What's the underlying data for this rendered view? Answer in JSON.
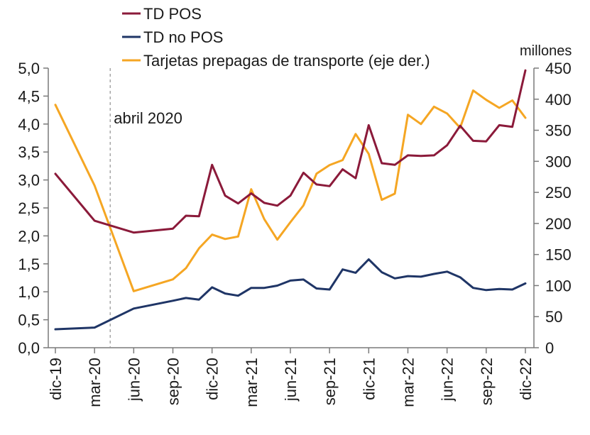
{
  "chart_data": {
    "type": "line",
    "title": "",
    "xlabel": "",
    "ylabel": "",
    "y2label": "millones",
    "ylim": [
      0,
      5
    ],
    "y2lim": [
      0,
      450
    ],
    "yticks": [
      "0,0",
      "0,5",
      "1,0",
      "1,5",
      "2,0",
      "2,5",
      "3,0",
      "3,5",
      "4,0",
      "4,5",
      "5,0"
    ],
    "y2ticks": [
      "0",
      "50",
      "100",
      "150",
      "200",
      "250",
      "300",
      "350",
      "400",
      "450"
    ],
    "x_tick_labels": [
      {
        "month": 0,
        "label": "dic-19"
      },
      {
        "month": 3,
        "label": "mar-20"
      },
      {
        "month": 6,
        "label": "jun-20"
      },
      {
        "month": 9,
        "label": "sep-20"
      },
      {
        "month": 12,
        "label": "dic-20"
      },
      {
        "month": 15,
        "label": "mar-21"
      },
      {
        "month": 18,
        "label": "jun-21"
      },
      {
        "month": 21,
        "label": "sep-21"
      },
      {
        "month": 24,
        "label": "dic-21"
      },
      {
        "month": 27,
        "label": "mar-22"
      },
      {
        "month": 30,
        "label": "jun-22"
      },
      {
        "month": 33,
        "label": "sep-22"
      },
      {
        "month": 36,
        "label": "dic-22"
      }
    ],
    "annotation": {
      "month": 4.2,
      "label": "abril 2020"
    },
    "series": [
      {
        "name": "TD POS",
        "color": "#8b1a3a",
        "axis": "left",
        "points": [
          [
            0,
            3.11
          ],
          [
            3,
            2.27
          ],
          [
            6,
            2.06
          ],
          [
            9,
            2.13
          ],
          [
            10,
            2.36
          ],
          [
            11,
            2.35
          ],
          [
            12,
            3.27
          ],
          [
            13,
            2.72
          ],
          [
            14,
            2.58
          ],
          [
            15,
            2.76
          ],
          [
            16,
            2.59
          ],
          [
            17,
            2.54
          ],
          [
            18,
            2.72
          ],
          [
            19,
            3.13
          ],
          [
            20,
            2.92
          ],
          [
            21,
            2.89
          ],
          [
            22,
            3.19
          ],
          [
            23,
            3.03
          ],
          [
            24,
            3.98
          ],
          [
            25,
            3.3
          ],
          [
            26,
            3.27
          ],
          [
            27,
            3.44
          ],
          [
            28,
            3.43
          ],
          [
            29,
            3.44
          ],
          [
            30,
            3.62
          ],
          [
            31,
            3.97
          ],
          [
            32,
            3.7
          ],
          [
            33,
            3.69
          ],
          [
            34,
            3.98
          ],
          [
            35,
            3.95
          ],
          [
            36,
            4.96
          ]
        ]
      },
      {
        "name": "TD no POS",
        "color": "#1f3566",
        "axis": "left",
        "points": [
          [
            0,
            0.33
          ],
          [
            3,
            0.36
          ],
          [
            6,
            0.7
          ],
          [
            9,
            0.84
          ],
          [
            10,
            0.89
          ],
          [
            11,
            0.86
          ],
          [
            12,
            1.08
          ],
          [
            13,
            0.97
          ],
          [
            14,
            0.93
          ],
          [
            15,
            1.07
          ],
          [
            16,
            1.07
          ],
          [
            17,
            1.11
          ],
          [
            18,
            1.2
          ],
          [
            19,
            1.22
          ],
          [
            20,
            1.06
          ],
          [
            21,
            1.04
          ],
          [
            22,
            1.4
          ],
          [
            23,
            1.34
          ],
          [
            24,
            1.58
          ],
          [
            25,
            1.35
          ],
          [
            26,
            1.24
          ],
          [
            27,
            1.28
          ],
          [
            28,
            1.27
          ],
          [
            29,
            1.32
          ],
          [
            30,
            1.36
          ],
          [
            31,
            1.26
          ],
          [
            32,
            1.07
          ],
          [
            33,
            1.03
          ],
          [
            34,
            1.05
          ],
          [
            35,
            1.04
          ],
          [
            36,
            1.15
          ]
        ]
      },
      {
        "name": "Tarjetas prepagas de transporte (eje der.)",
        "color": "#f5a623",
        "axis": "right",
        "points": [
          [
            0,
            391
          ],
          [
            3,
            261
          ],
          [
            6,
            91
          ],
          [
            9,
            110
          ],
          [
            10,
            128
          ],
          [
            11,
            160
          ],
          [
            12,
            182
          ],
          [
            13,
            175
          ],
          [
            14,
            179
          ],
          [
            15,
            255
          ],
          [
            16,
            207
          ],
          [
            17,
            174
          ],
          [
            18,
            202
          ],
          [
            19,
            229
          ],
          [
            20,
            280
          ],
          [
            21,
            294
          ],
          [
            22,
            302
          ],
          [
            23,
            344
          ],
          [
            24,
            312
          ],
          [
            25,
            238
          ],
          [
            26,
            248
          ],
          [
            27,
            375
          ],
          [
            28,
            360
          ],
          [
            29,
            388
          ],
          [
            30,
            377
          ],
          [
            31,
            354
          ],
          [
            32,
            414
          ],
          [
            33,
            399
          ],
          [
            34,
            386
          ],
          [
            35,
            398
          ],
          [
            36,
            370
          ]
        ]
      }
    ],
    "legend": {
      "position": "top-center"
    }
  }
}
